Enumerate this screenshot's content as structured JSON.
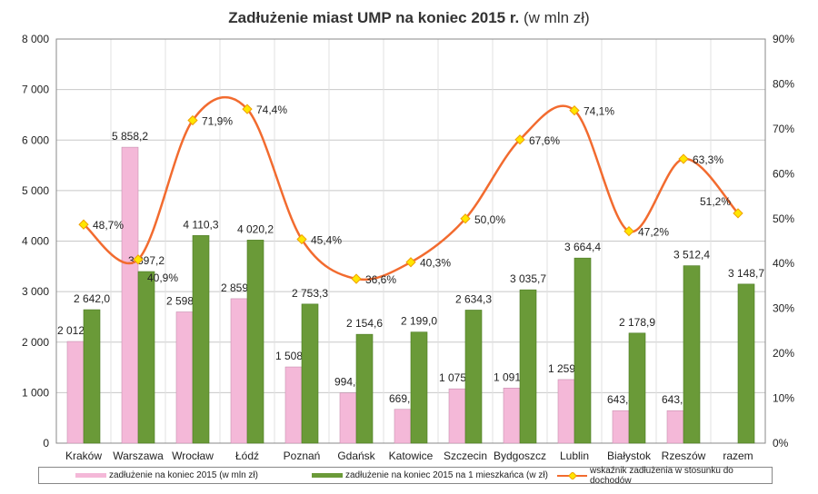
{
  "chart_data": {
    "type": "bar+line",
    "title": "Zadłużenie miast UMP na koniec 2015 r.",
    "subtitle": "(w mln zł)",
    "categories": [
      "Kraków",
      "Warszawa",
      "Wrocław",
      "Łódź",
      "Poznań",
      "Gdańsk",
      "Katowice",
      "Szczecin",
      "Bydgoszcz",
      "Lublin",
      "Białystok",
      "Rzeszów",
      "razem"
    ],
    "series": [
      {
        "name": "zadłużenie na koniec 2015 (w mln zł)",
        "type": "bar",
        "axis": "left",
        "color": "#f4b8d8",
        "values": [
          2012.8,
          5858.2,
          2598.0,
          2859.7,
          1508.9,
          994.4,
          669.3,
          1075.3,
          1091.1,
          1259.1,
          643.4,
          643.2,
          null
        ],
        "labels": [
          "2 012,8",
          "5 858,2",
          "2 598,0",
          "2 859,7",
          "1 508,9",
          "994,4",
          "669,3",
          "1 075,3",
          "1 091,1",
          "1 259,1",
          "643,4",
          "643,2",
          ""
        ]
      },
      {
        "name": "zadłużenie na koniec 2015 na 1 mieszkańca (w zł)",
        "type": "bar",
        "axis": "left",
        "color": "#6a9a38",
        "values": [
          2642.0,
          3397.2,
          4110.3,
          4020.2,
          2753.3,
          2154.6,
          2199.0,
          2634.3,
          3035.7,
          3664.4,
          2178.9,
          3512.4,
          3148.7
        ],
        "labels": [
          "2 642,0",
          "3 397,2",
          "4 110,3",
          "4 020,2",
          "2 753,3",
          "2 154,6",
          "2 199,0",
          "2 634,3",
          "3 035,7",
          "3 664,4",
          "2 178,9",
          "3 512,4",
          "3 148,7"
        ]
      },
      {
        "name": "wskaźnik zadłużenia w stosunku do dochodów",
        "type": "line",
        "axis": "right",
        "color": "#f26b2f",
        "marker_color": "#ffe600",
        "values": [
          48.7,
          40.9,
          71.9,
          74.4,
          45.4,
          36.6,
          40.3,
          50.0,
          67.6,
          74.1,
          47.2,
          63.3,
          51.2
        ],
        "labels": [
          "48,7%",
          "40,9%",
          "71,9%",
          "74,4%",
          "45,4%",
          "36,6%",
          "40,3%",
          "50,0%",
          "67,6%",
          "74,1%",
          "47,2%",
          "63,3%",
          "51,2%"
        ]
      }
    ],
    "y_left": {
      "range": [
        0,
        8000
      ],
      "ticks": [
        "0",
        "1 000",
        "2 000",
        "3 000",
        "4 000",
        "5 000",
        "6 000",
        "7 000",
        "8 000"
      ]
    },
    "y_right": {
      "range": [
        0,
        90
      ],
      "ticks": [
        "0%",
        "10%",
        "20%",
        "30%",
        "40%",
        "50%",
        "60%",
        "70%",
        "80%",
        "90%"
      ]
    },
    "grid": true,
    "legend": "bottom"
  }
}
